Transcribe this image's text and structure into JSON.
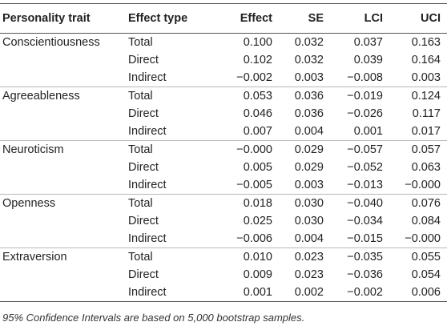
{
  "table": {
    "headers": {
      "trait": "Personality trait",
      "type": "Effect type",
      "effect": "Effect",
      "se": "SE",
      "lci": "LCI",
      "uci": "UCI"
    },
    "rows": [
      {
        "trait": "Conscientiousness",
        "type": "Total",
        "effect": "0.100",
        "se": "0.032",
        "lci": "0.037",
        "uci": "0.163"
      },
      {
        "trait": "",
        "type": "Direct",
        "effect": "0.102",
        "se": "0.032",
        "lci": "0.039",
        "uci": "0.164"
      },
      {
        "trait": "",
        "type": "Indirect",
        "effect": "−0.002",
        "se": "0.003",
        "lci": "−0.008",
        "uci": "0.003"
      },
      {
        "trait": "Agreeableness",
        "type": "Total",
        "effect": "0.053",
        "se": "0.036",
        "lci": "−0.019",
        "uci": "0.124"
      },
      {
        "trait": "",
        "type": "Direct",
        "effect": "0.046",
        "se": "0.036",
        "lci": "−0.026",
        "uci": "0.117"
      },
      {
        "trait": "",
        "type": "Indirect",
        "effect": "0.007",
        "se": "0.004",
        "lci": "0.001",
        "uci": "0.017"
      },
      {
        "trait": "Neuroticism",
        "type": "Total",
        "effect": "−0.000",
        "se": "0.029",
        "lci": "−0.057",
        "uci": "0.057"
      },
      {
        "trait": "",
        "type": "Direct",
        "effect": "0.005",
        "se": "0.029",
        "lci": "−0.052",
        "uci": "0.063"
      },
      {
        "trait": "",
        "type": "Indirect",
        "effect": "−0.005",
        "se": "0.003",
        "lci": "−0.013",
        "uci": "−0.000"
      },
      {
        "trait": "Openness",
        "type": "Total",
        "effect": "0.018",
        "se": "0.030",
        "lci": "−0.040",
        "uci": "0.076"
      },
      {
        "trait": "",
        "type": "Direct",
        "effect": "0.025",
        "se": "0.030",
        "lci": "−0.034",
        "uci": "0.084"
      },
      {
        "trait": "",
        "type": "Indirect",
        "effect": "−0.006",
        "se": "0.004",
        "lci": "−0.015",
        "uci": "−0.000"
      },
      {
        "trait": "Extraversion",
        "type": "Total",
        "effect": "0.010",
        "se": "0.023",
        "lci": "−0.035",
        "uci": "0.055"
      },
      {
        "trait": "",
        "type": "Direct",
        "effect": "0.009",
        "se": "0.023",
        "lci": "−0.036",
        "uci": "0.054"
      },
      {
        "trait": "",
        "type": "Indirect",
        "effect": "0.001",
        "se": "0.002",
        "lci": "−0.002",
        "uci": "0.006"
      }
    ]
  },
  "footnote": "95% Confidence Intervals are based on 5,000 bootstrap samples."
}
